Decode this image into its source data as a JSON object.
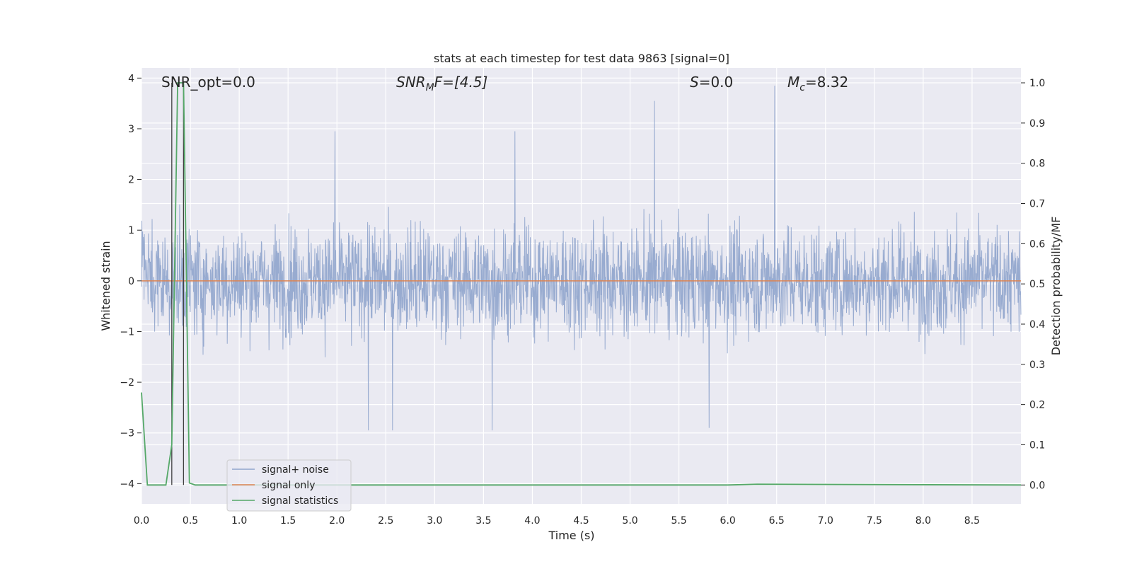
{
  "chart_data": {
    "type": "line",
    "title": "stats at each timestep for test data 9863 [signal=0]",
    "xlabel": "Time (s)",
    "ylabel_left": "Whitened strain",
    "ylabel_right": "Detection probability/MF",
    "xlim": [
      0.0,
      9.0
    ],
    "ylim_left": [
      -4.4,
      4.2
    ],
    "ylim_right": [
      -0.047,
      1.037
    ],
    "x_ticks": [
      "0.0",
      "0.5",
      "1.0",
      "1.5",
      "2.0",
      "2.5",
      "3.0",
      "3.5",
      "4.0",
      "4.5",
      "5.0",
      "5.5",
      "6.0",
      "6.5",
      "7.0",
      "7.5",
      "8.0",
      "8.5"
    ],
    "y_ticks_left": [
      "4",
      "3",
      "2",
      "1",
      "0",
      "−1",
      "−2",
      "−3",
      "−4"
    ],
    "y_ticks_right": [
      "1.0",
      "0.9",
      "0.8",
      "0.7",
      "0.6",
      "0.5",
      "0.4",
      "0.3",
      "0.2",
      "0.1",
      "0.0"
    ],
    "grid": true,
    "annotations": {
      "snr_opt": "SNR_opt=0.0",
      "snr_mf_main": "SNR",
      "snr_mf_sub": "M",
      "snr_mf_rest": "F=[4.5]",
      "s_main": "S",
      "s_rest": "=0.0",
      "mc_main": "M",
      "mc_sub": "c",
      "mc_rest": "=8.32"
    },
    "series": [
      {
        "name": "signal+ noise",
        "color": "#8fa4cc",
        "description": "whitened strain noise, approx. spread ±1.5 with spikes to ±3.8",
        "notable_peaks": [
          {
            "x": 5.25,
            "y": 3.55
          },
          {
            "x": 6.48,
            "y": 3.85
          },
          {
            "x": 3.82,
            "y": 2.95
          },
          {
            "x": 1.98,
            "y": 2.95
          },
          {
            "x": 3.59,
            "y": -2.95
          },
          {
            "x": 2.32,
            "y": -2.95
          },
          {
            "x": 2.57,
            "y": -2.95
          },
          {
            "x": 5.81,
            "y": -2.9
          }
        ]
      },
      {
        "name": "signal only",
        "color": "#dd8452",
        "values_note": "zero across the whole time range",
        "x": [
          0.0,
          9.0
        ],
        "y": [
          0.0,
          0.0
        ]
      },
      {
        "name": "signal statistics",
        "color": "#55a868",
        "axis": "right",
        "x": [
          0.0,
          0.06,
          0.25,
          0.31,
          0.37,
          0.43,
          0.49,
          0.55,
          0.9,
          6.0,
          6.3,
          9.0
        ],
        "y": [
          0.23,
          0.0,
          0.0,
          0.1,
          1.0,
          1.0,
          0.005,
          0.0,
          0.0,
          0.0,
          0.002,
          0.0
        ]
      }
    ],
    "markers": {
      "vertical_lines_x": [
        0.31,
        0.43
      ],
      "color": "#404040"
    },
    "legend": {
      "placement": "lower-left",
      "entries": [
        "signal+ noise",
        "signal only",
        "signal statistics"
      ]
    }
  }
}
